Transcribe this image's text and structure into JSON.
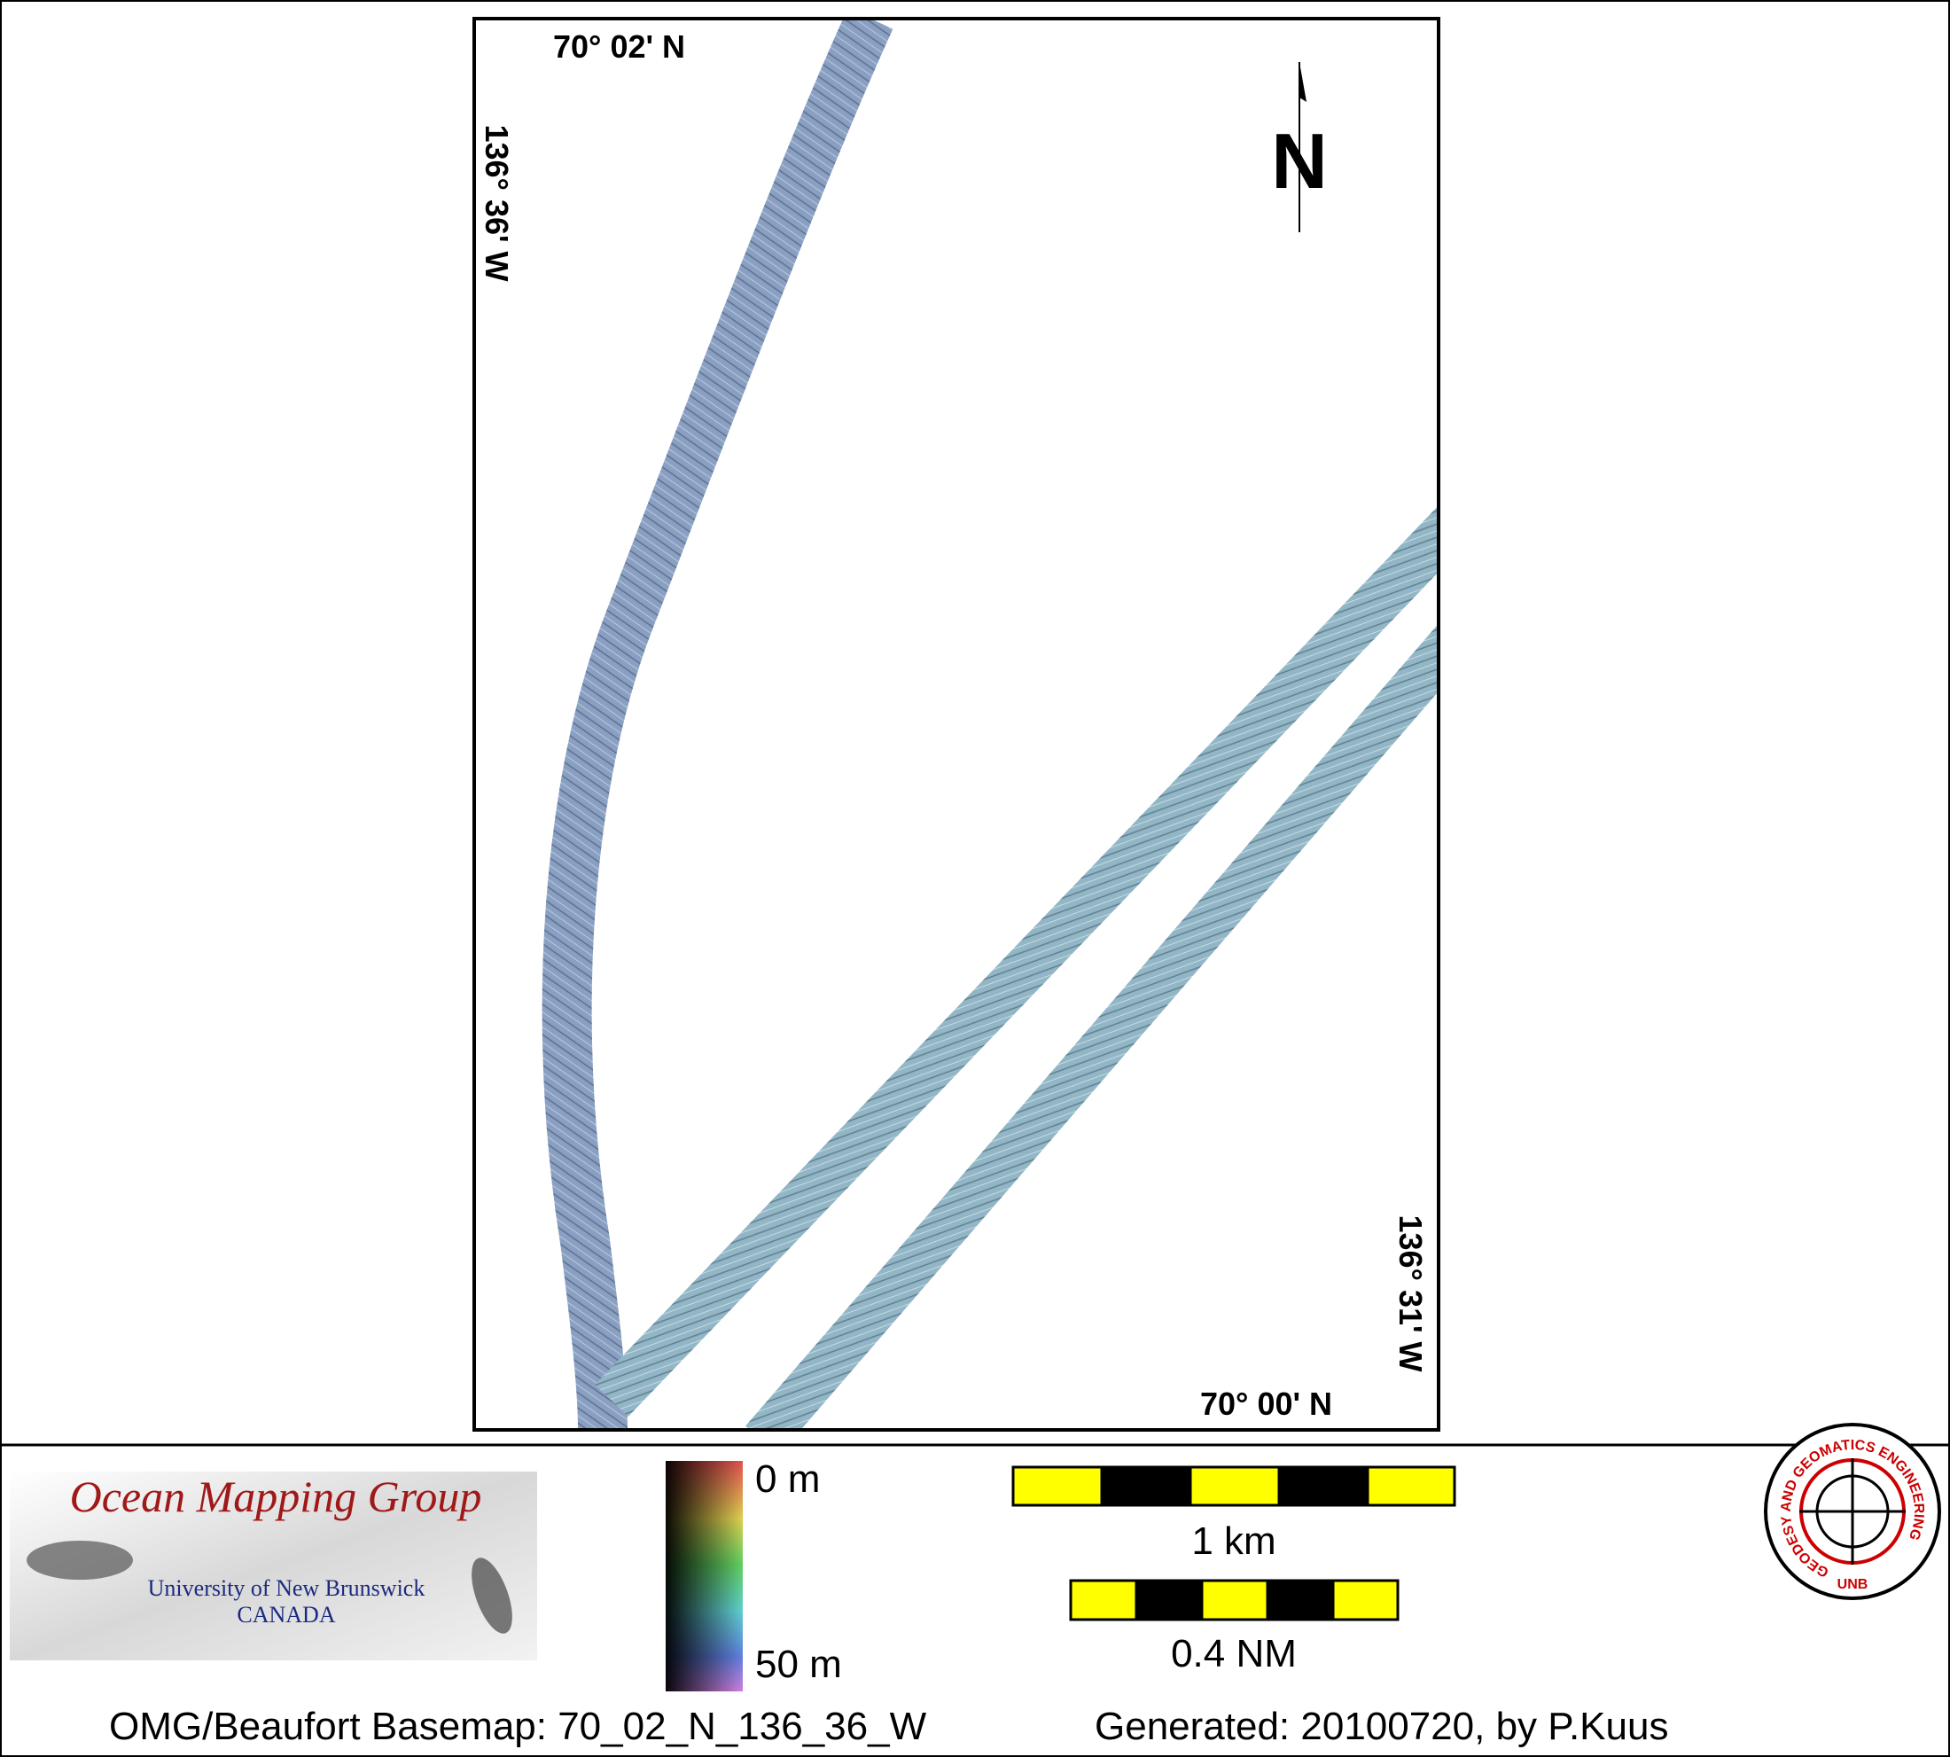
{
  "map": {
    "labels": {
      "top_lat": "70° 02' N",
      "bottom_lat": "70° 00' N",
      "left_lon": "136° 36' W",
      "right_lon": "136° 31' W"
    },
    "north": "N"
  },
  "legend": {
    "depth_top": "0 m",
    "depth_bottom": "50 m"
  },
  "scale_bars": [
    {
      "label": "1 km"
    },
    {
      "label": "0.4 NM"
    }
  ],
  "logo": {
    "title": "Ocean Mapping Group",
    "university": "University of New Brunswick",
    "country": "CANADA"
  },
  "emblem": {
    "ring_text": "GEODESY AND GEOMATICS ENGINEERING",
    "center": "UNB"
  },
  "footer": {
    "basemap": "OMG/Beaufort Basemap: 70_02_N_136_36_W",
    "generated": "Generated: 20100720, by P.Kuus"
  }
}
